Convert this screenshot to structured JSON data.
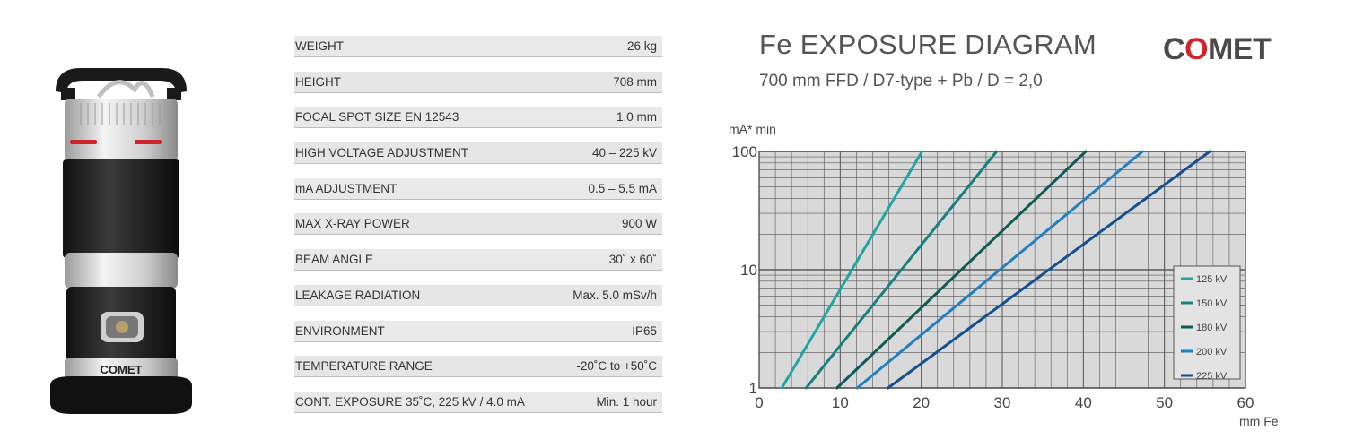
{
  "specs": [
    {
      "label": "WEIGHT",
      "value": "26 kg"
    },
    {
      "label": "HEIGHT",
      "value": "708 mm"
    },
    {
      "label": "FOCAL SPOT SIZE EN 12543",
      "value": "1.0 mm"
    },
    {
      "label": "HIGH VOLTAGE ADJUSTMENT",
      "value": "40 – 225 kV"
    },
    {
      "label": "mA ADJUSTMENT",
      "value": "0.5 – 5.5 mA"
    },
    {
      "label": "MAX X-RAY POWER",
      "value": "900 W"
    },
    {
      "label": "BEAM ANGLE",
      "value": "30˚ x 60˚"
    },
    {
      "label": "LEAKAGE RADIATION",
      "value": "Max. 5.0 mSv/h"
    },
    {
      "label": "ENVIRONMENT",
      "value": "IP65"
    },
    {
      "label": "TEMPERATURE RANGE",
      "value": "-20˚C to +50˚C"
    },
    {
      "label": "CONT. EXPOSURE  35˚C, 225 kV / 4.0 mA",
      "value": "Min. 1 hour"
    }
  ],
  "brand": {
    "logo_pre": "C",
    "logo_o": "O",
    "logo_post": "MET",
    "device_label": "COMET"
  },
  "colors": {
    "accent_red": "#d2232a",
    "grid_bg": "#d9d9d9"
  },
  "chart_data": {
    "type": "line",
    "title": "Fe EXPOSURE DIAGRAM",
    "subtitle": "700 mm FFD / D7-type + Pb / D = 2,0",
    "xlabel": "mm Fe",
    "ylabel": "mA* min",
    "xlim": [
      0,
      60
    ],
    "ylim": [
      1,
      100
    ],
    "yscale": "log",
    "x_ticks": [
      "0",
      "10",
      "20",
      "30",
      "40",
      "50",
      "60"
    ],
    "y_ticks": [
      "1",
      "10",
      "100"
    ],
    "grid": true,
    "legend_position": "right",
    "series": [
      {
        "name": "125 kV",
        "color": "#1fa6a0",
        "x": [
          2.8,
          20.1
        ],
        "y": [
          1,
          100
        ]
      },
      {
        "name": "150 kV",
        "color": "#18807f",
        "x": [
          5.8,
          29.3
        ],
        "y": [
          1,
          100
        ]
      },
      {
        "name": "180 kV",
        "color": "#0e5a55",
        "x": [
          9.6,
          40.3
        ],
        "y": [
          1,
          100
        ]
      },
      {
        "name": "200 kV",
        "color": "#1f7fc0",
        "x": [
          12.1,
          47.3
        ],
        "y": [
          1,
          100
        ]
      },
      {
        "name": "225 kV",
        "color": "#144f8f",
        "x": [
          15.9,
          55.6
        ],
        "y": [
          1,
          100
        ]
      }
    ]
  }
}
